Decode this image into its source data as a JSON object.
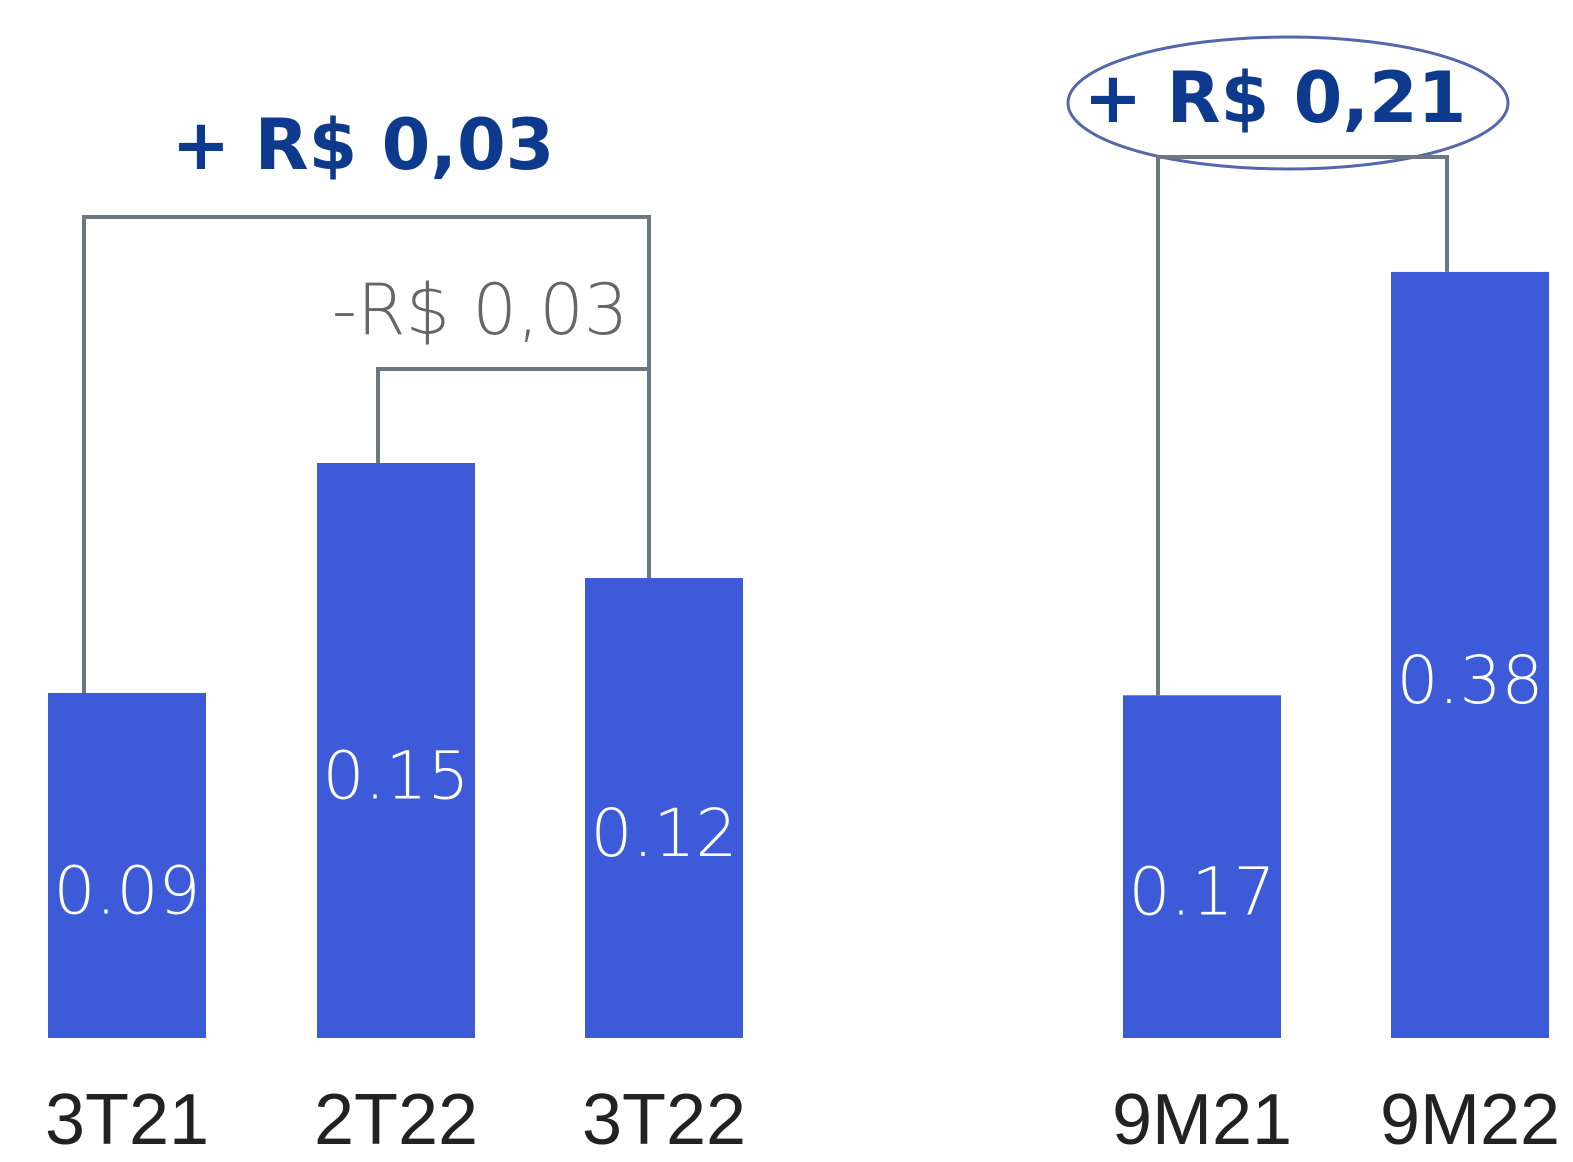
{
  "chart_data": [
    {
      "type": "bar",
      "categories": [
        "3T21",
        "2T22",
        "3T22"
      ],
      "values": [
        0.09,
        0.15,
        0.12
      ],
      "color": "#3d5bd9",
      "ylim": [
        0,
        0.27
      ],
      "annotations": [
        "+ R$ 0,03",
        "-R$ 0,03"
      ]
    },
    {
      "type": "bar",
      "categories": [
        "9M21",
        "9M22"
      ],
      "values": [
        0.17,
        0.38
      ],
      "color": "#3d5bd9",
      "ylim": [
        0,
        0.5
      ],
      "annotations": [
        "+ R$ 0,21"
      ]
    }
  ]
}
